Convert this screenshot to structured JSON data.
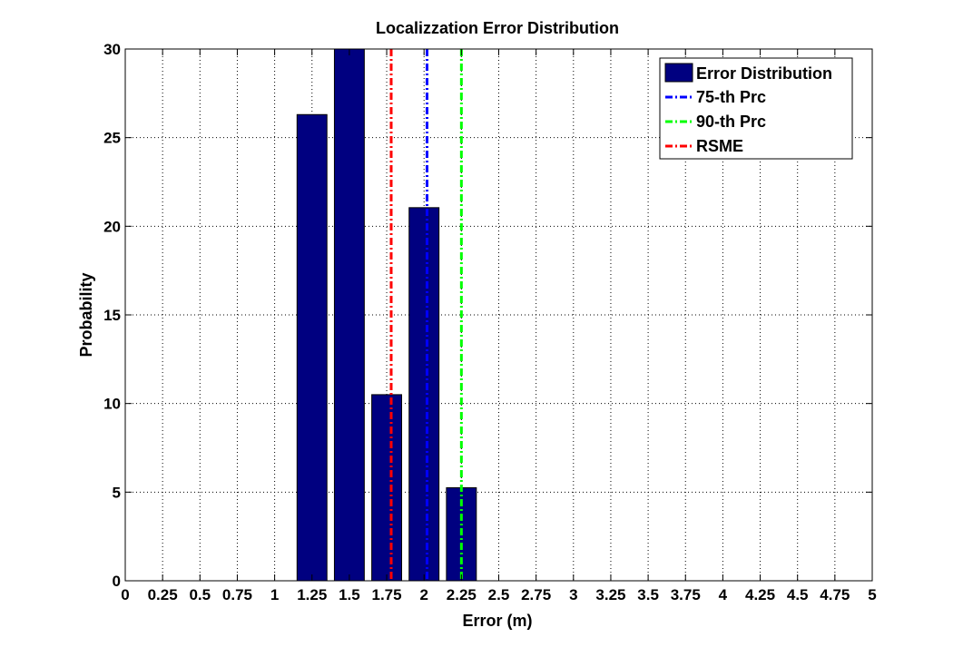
{
  "chart_data": {
    "type": "bar",
    "title": "Localizzation Error Distribution",
    "xlabel": "Error (m)",
    "ylabel": "Probability",
    "xlim": [
      0,
      5
    ],
    "ylim": [
      0,
      30
    ],
    "grid": true,
    "x_ticks": [
      0,
      0.25,
      0.5,
      0.75,
      1,
      1.25,
      1.5,
      1.75,
      2,
      2.25,
      2.5,
      2.75,
      3,
      3.25,
      3.5,
      3.75,
      4,
      4.25,
      4.5,
      4.75,
      5
    ],
    "x_tick_labels": [
      "0",
      "0.25",
      "0.5",
      "0.75",
      "1",
      "1.25",
      "1.5",
      "1.75",
      "2",
      "2.25",
      "2.5",
      "2.75",
      "3",
      "3.25",
      "3.5",
      "3.75",
      "4",
      "4.25",
      "4.5",
      "4.75",
      "5"
    ],
    "y_ticks": [
      0,
      5,
      10,
      15,
      20,
      25,
      30
    ],
    "y_tick_labels": [
      "0",
      "5",
      "10",
      "15",
      "20",
      "25",
      "30"
    ],
    "bar_width": 0.2,
    "series": [
      {
        "name": "Error Distribution",
        "type": "bar",
        "color": "#000080",
        "x": [
          1.25,
          1.5,
          1.75,
          2.0,
          2.25
        ],
        "values": [
          26.3,
          30.0,
          10.5,
          21.05,
          5.25
        ]
      }
    ],
    "vlines": [
      {
        "name": "75-th Prc",
        "x": 2.02,
        "color": "#0000ff",
        "style": "dash-dot"
      },
      {
        "name": "90-th Prc",
        "x": 2.25,
        "color": "#00ff00",
        "style": "dash-dot"
      },
      {
        "name": "RSME",
        "x": 1.78,
        "color": "#ff0000",
        "style": "dash-dot"
      }
    ],
    "legend": {
      "position": "top-right",
      "entries": [
        {
          "label": "Error Distribution",
          "kind": "bar",
          "color": "#000080"
        },
        {
          "label": "75-th Prc",
          "kind": "line",
          "color": "#0000ff"
        },
        {
          "label": "90-th Prc",
          "kind": "line",
          "color": "#00ff00"
        },
        {
          "label": "RSME",
          "kind": "line",
          "color": "#ff0000"
        }
      ]
    }
  }
}
